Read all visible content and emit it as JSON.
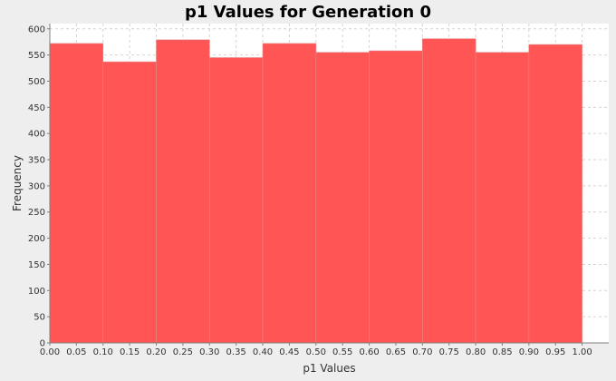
{
  "chart_data": {
    "type": "bar",
    "title": "p1 Values for Generation 0",
    "xlabel": "p1 Values",
    "ylabel": "Frequency",
    "bins": [
      {
        "x0": 0.0,
        "x1": 0.1,
        "value": 572
      },
      {
        "x0": 0.1,
        "x1": 0.2,
        "value": 537
      },
      {
        "x0": 0.2,
        "x1": 0.3,
        "value": 579
      },
      {
        "x0": 0.3,
        "x1": 0.4,
        "value": 545
      },
      {
        "x0": 0.4,
        "x1": 0.5,
        "value": 572
      },
      {
        "x0": 0.5,
        "x1": 0.6,
        "value": 555
      },
      {
        "x0": 0.6,
        "x1": 0.7,
        "value": 558
      },
      {
        "x0": 0.7,
        "x1": 0.8,
        "value": 581
      },
      {
        "x0": 0.8,
        "x1": 0.9,
        "value": 555
      },
      {
        "x0": 0.9,
        "x1": 1.0,
        "value": 570
      }
    ],
    "xlim": [
      0.0,
      1.05
    ],
    "ylim": [
      0,
      610
    ],
    "x_ticks": [
      "0.00",
      "0.05",
      "0.10",
      "0.15",
      "0.20",
      "0.25",
      "0.30",
      "0.35",
      "0.40",
      "0.45",
      "0.50",
      "0.55",
      "0.60",
      "0.65",
      "0.70",
      "0.75",
      "0.80",
      "0.85",
      "0.90",
      "0.95",
      "1.00"
    ],
    "y_ticks": [
      "0",
      "50",
      "100",
      "150",
      "200",
      "250",
      "300",
      "350",
      "400",
      "450",
      "500",
      "550",
      "600"
    ],
    "grid": true,
    "bar_color": "#ff5555",
    "plot_background": "#ffffff",
    "page_background": "#eeeeee",
    "grid_color": "#d4d4d4"
  }
}
